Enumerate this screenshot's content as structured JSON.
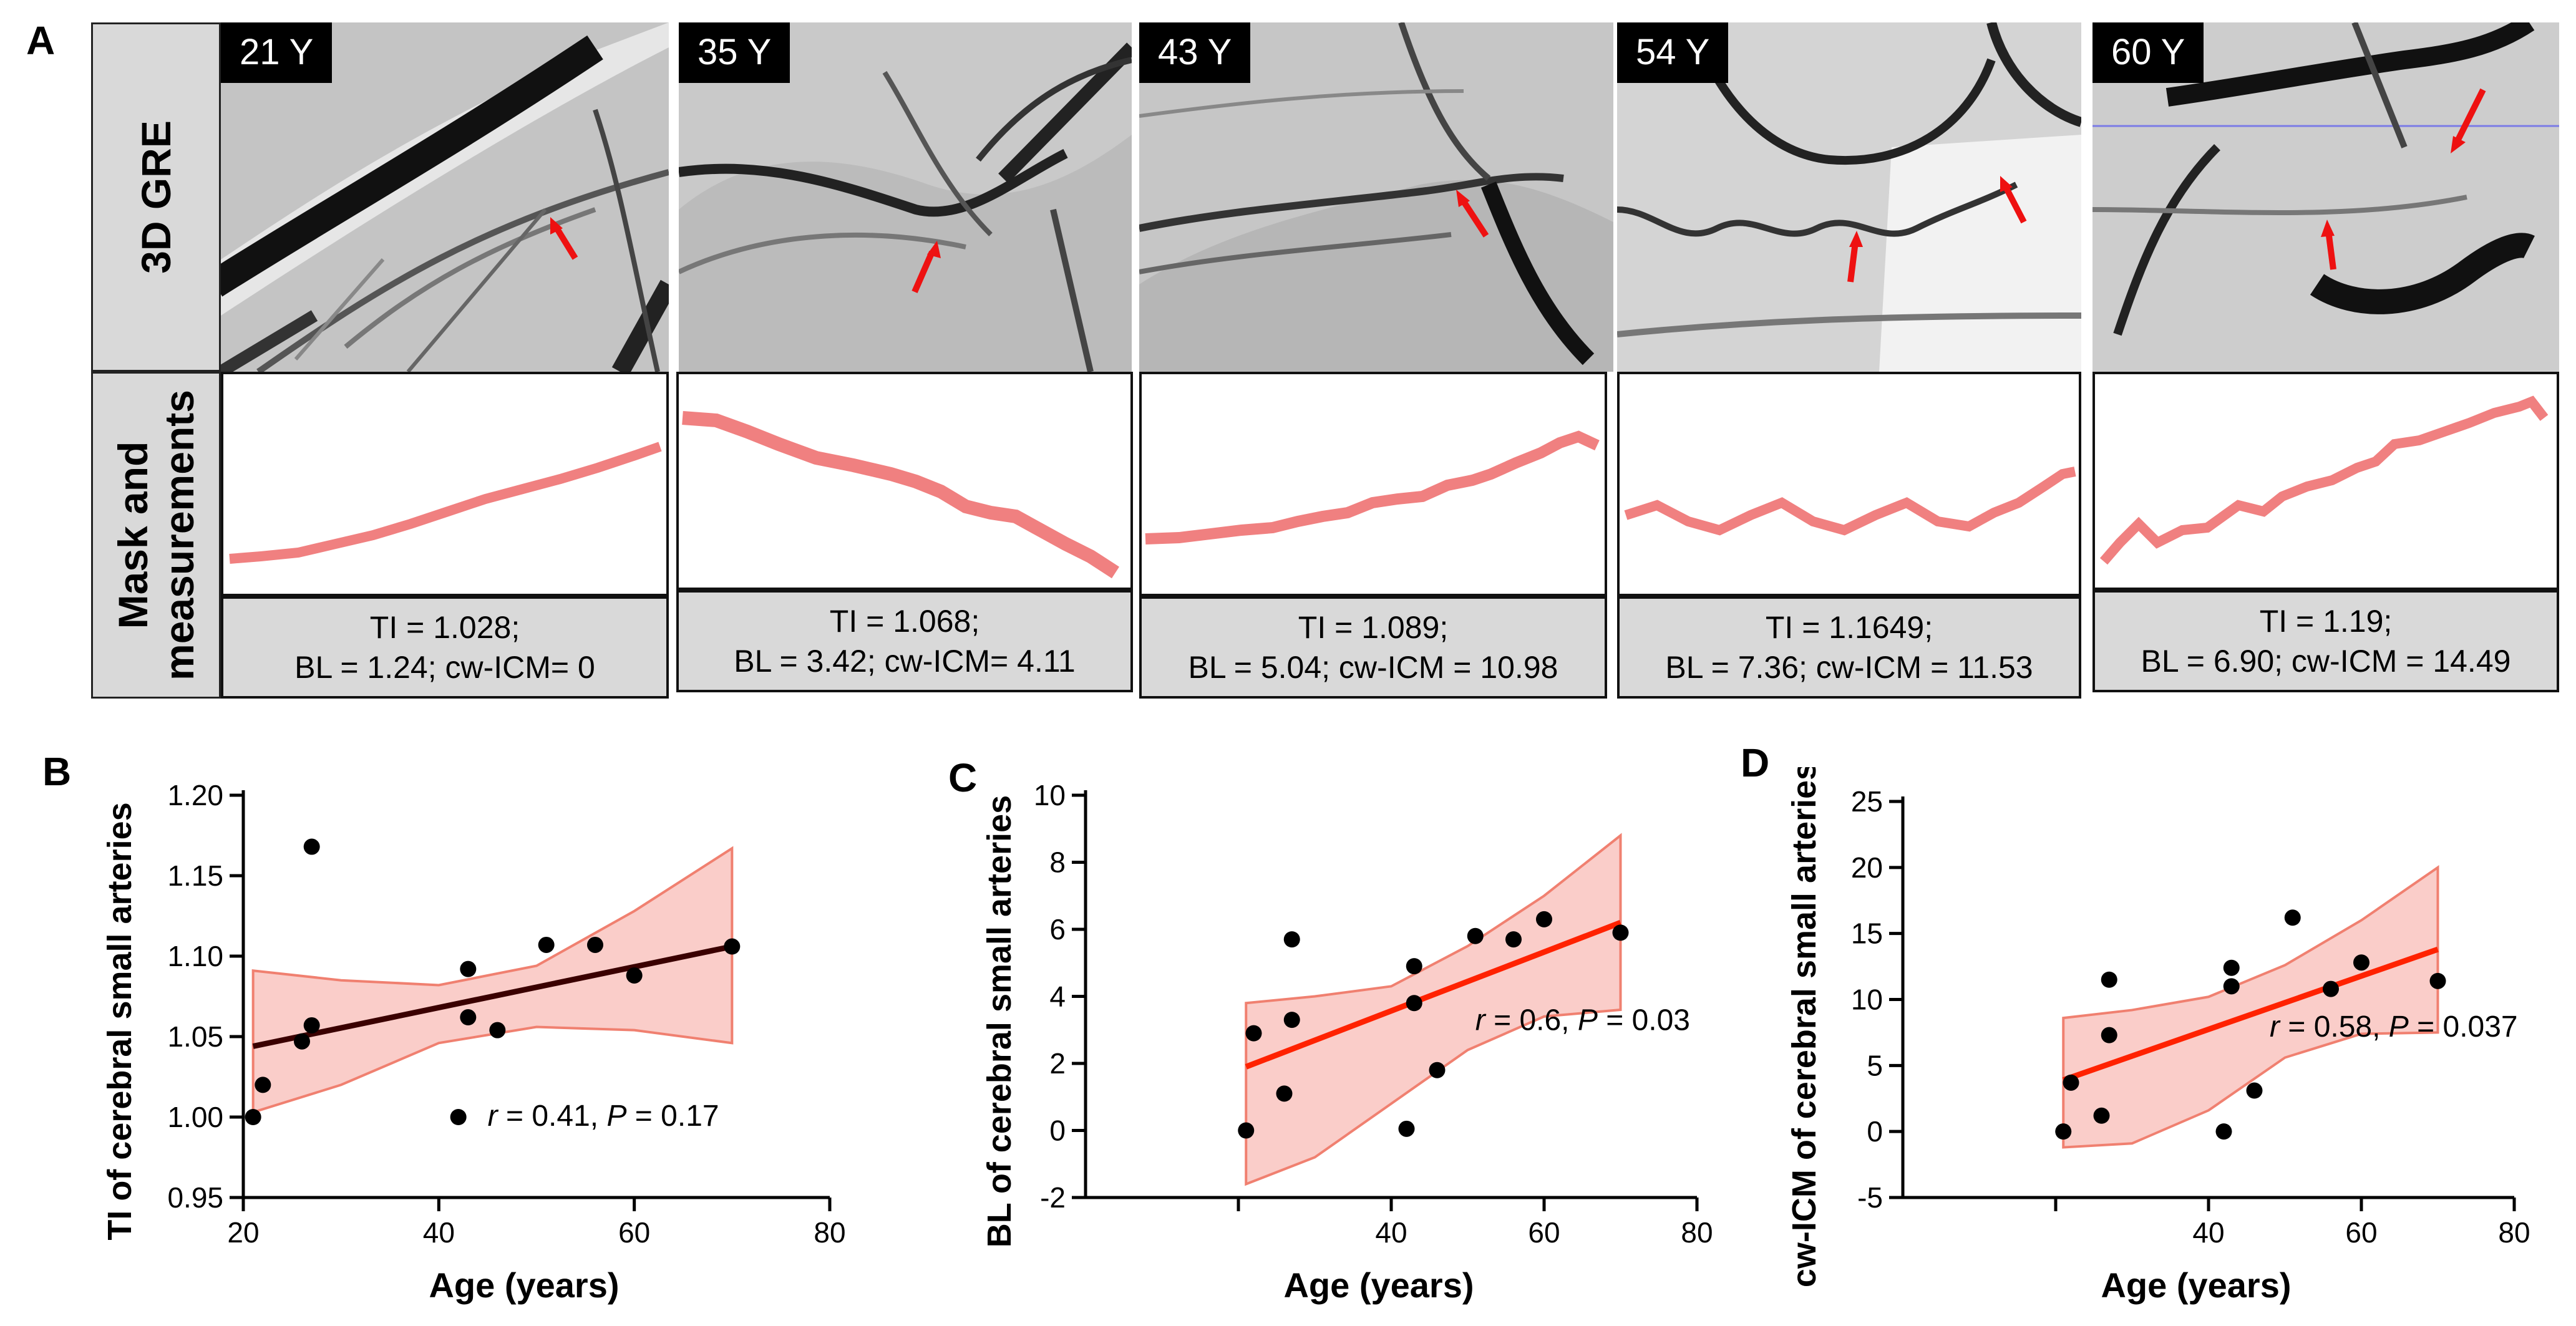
{
  "panel_letters": {
    "a": "A",
    "b": "B",
    "c": "C",
    "d": "D"
  },
  "row_labels": {
    "gre": "3D GRE",
    "mask_line1": "Mask and",
    "mask_line2": "measuremen",
    "mask_ts": "ts",
    "meas_line": "measurements"
  },
  "samples": [
    {
      "age": "21 Y",
      "metric1": "TI = 1.028;",
      "metric2": "BL = 1.24; cw-ICM= 0"
    },
    {
      "age": "35 Y",
      "metric1": "TI = 1.068;",
      "metric2": "BL = 3.42; cw-ICM= 4.11"
    },
    {
      "age": "43 Y",
      "metric1": "TI = 1.089;",
      "metric2": "BL = 5.04; cw-ICM = 10.98"
    },
    {
      "age": "54 Y",
      "metric1": "TI = 1.1649;",
      "metric2": "BL = 7.36; cw-ICM = 11.53"
    },
    {
      "age": "60 Y",
      "metric1": "TI = 1.19;",
      "metric2": "BL = 6.90; cw-ICM = 14.49"
    }
  ],
  "colors": {
    "mask": "#f08080",
    "arrow": "#ee1111",
    "band": "#f6a49c",
    "fitB": "#3a0000",
    "fitCD": "#ff2200",
    "panel_bg": "#d9d9d9"
  },
  "chart_data": [
    {
      "id": "B",
      "type": "scatter",
      "xlabel": "Age (years)",
      "ylabel": "TI of cerebral small arteries",
      "xlim": [
        20,
        80
      ],
      "ylim": [
        0.95,
        1.2
      ],
      "xticks": [
        "20",
        "40",
        "60",
        "80"
      ],
      "yticks": [
        "0.95",
        "1.00",
        "1.05",
        "1.10",
        "1.15",
        "1.20"
      ],
      "yticks_v": [
        0.95,
        1.0,
        1.05,
        1.1,
        1.15,
        1.2
      ],
      "xticks_v": [
        20,
        40,
        60,
        80
      ],
      "points": [
        [
          21,
          1.0
        ],
        [
          22,
          1.02
        ],
        [
          26,
          1.047
        ],
        [
          27,
          1.057
        ],
        [
          27,
          1.168
        ],
        [
          42,
          1.0
        ],
        [
          43,
          1.092
        ],
        [
          43,
          1.062
        ],
        [
          46,
          1.054
        ],
        [
          51,
          1.107
        ],
        [
          56,
          1.107
        ],
        [
          60,
          1.088
        ],
        [
          70,
          1.106
        ]
      ],
      "fit": [
        [
          21,
          1.044
        ],
        [
          70,
          1.106
        ]
      ],
      "ci_upper": [
        [
          21,
          1.091
        ],
        [
          30,
          1.085
        ],
        [
          40,
          1.082
        ],
        [
          50,
          1.094
        ],
        [
          60,
          1.128
        ],
        [
          70,
          1.167
        ]
      ],
      "ci_lower": [
        [
          70,
          1.046
        ],
        [
          60,
          1.054
        ],
        [
          50,
          1.056
        ],
        [
          40,
          1.046
        ],
        [
          30,
          1.02
        ],
        [
          21,
          1.003
        ]
      ],
      "stats_r": "r",
      "stats_rest": " = 0.41, ",
      "stats_p": "P",
      "stats_pval": " = 0.17"
    },
    {
      "id": "C",
      "type": "scatter",
      "xlabel": "Age (years)",
      "ylabel": "BL of cerebral small arteries",
      "xlim": [
        0,
        80
      ],
      "ylim": [
        -2,
        10
      ],
      "xticks": [
        "40",
        "60",
        "80"
      ],
      "xticks_v": [
        40,
        60,
        80
      ],
      "yticks": [
        "-2",
        "0",
        "2",
        "4",
        "6",
        "8",
        "10"
      ],
      "yticks_v": [
        -2,
        0,
        2,
        4,
        6,
        8,
        10
      ],
      "points": [
        [
          21,
          0.0
        ],
        [
          22,
          2.9
        ],
        [
          26,
          1.1
        ],
        [
          27,
          5.7
        ],
        [
          27,
          3.3
        ],
        [
          42,
          0.05
        ],
        [
          43,
          4.9
        ],
        [
          43,
          3.8
        ],
        [
          46,
          1.8
        ],
        [
          51,
          5.8
        ],
        [
          56,
          5.7
        ],
        [
          60,
          6.3
        ],
        [
          70,
          5.9
        ]
      ],
      "fit": [
        [
          21,
          1.9
        ],
        [
          70,
          6.2
        ]
      ],
      "ci_upper": [
        [
          21,
          3.8
        ],
        [
          30,
          4.0
        ],
        [
          40,
          4.3
        ],
        [
          50,
          5.5
        ],
        [
          60,
          7.0
        ],
        [
          70,
          8.8
        ]
      ],
      "ci_lower": [
        [
          70,
          3.6
        ],
        [
          60,
          3.4
        ],
        [
          50,
          2.4
        ],
        [
          40,
          0.8
        ],
        [
          30,
          -0.8
        ],
        [
          21,
          -1.6
        ]
      ],
      "stats_r": "r",
      "stats_rest": " = 0.6, ",
      "stats_p": "P",
      "stats_pval": " = 0.03"
    },
    {
      "id": "D",
      "type": "scatter",
      "xlabel": "Age (years)",
      "ylabel": "cw-ICM of cerebral small arteries",
      "xlim": [
        0,
        80
      ],
      "ylim": [
        -5,
        25
      ],
      "xticks": [
        "40",
        "60",
        "80"
      ],
      "xticks_v": [
        40,
        60,
        80
      ],
      "yticks": [
        "-5",
        "0",
        "5",
        "10",
        "15",
        "20",
        "25"
      ],
      "yticks_v": [
        -5,
        0,
        5,
        10,
        15,
        20,
        25
      ],
      "points": [
        [
          21,
          0.0
        ],
        [
          22,
          3.7
        ],
        [
          26,
          1.2
        ],
        [
          27,
          11.5
        ],
        [
          27,
          7.3
        ],
        [
          42,
          0.0
        ],
        [
          43,
          12.4
        ],
        [
          43,
          11.0
        ],
        [
          46,
          3.1
        ],
        [
          51,
          16.2
        ],
        [
          56,
          10.8
        ],
        [
          60,
          12.8
        ],
        [
          70,
          11.4
        ]
      ],
      "fit": [
        [
          21,
          3.9
        ],
        [
          70,
          13.8
        ]
      ],
      "ci_upper": [
        [
          21,
          8.6
        ],
        [
          30,
          9.2
        ],
        [
          40,
          10.2
        ],
        [
          50,
          12.6
        ],
        [
          60,
          16.0
        ],
        [
          70,
          20.0
        ]
      ],
      "ci_lower": [
        [
          70,
          7.5
        ],
        [
          60,
          7.4
        ],
        [
          50,
          5.6
        ],
        [
          40,
          1.6
        ],
        [
          30,
          -0.9
        ],
        [
          21,
          -1.2
        ]
      ],
      "stats_r": "r",
      "stats_rest": " = 0.58, ",
      "stats_p": "P",
      "stats_pval": " = 0.037"
    }
  ]
}
